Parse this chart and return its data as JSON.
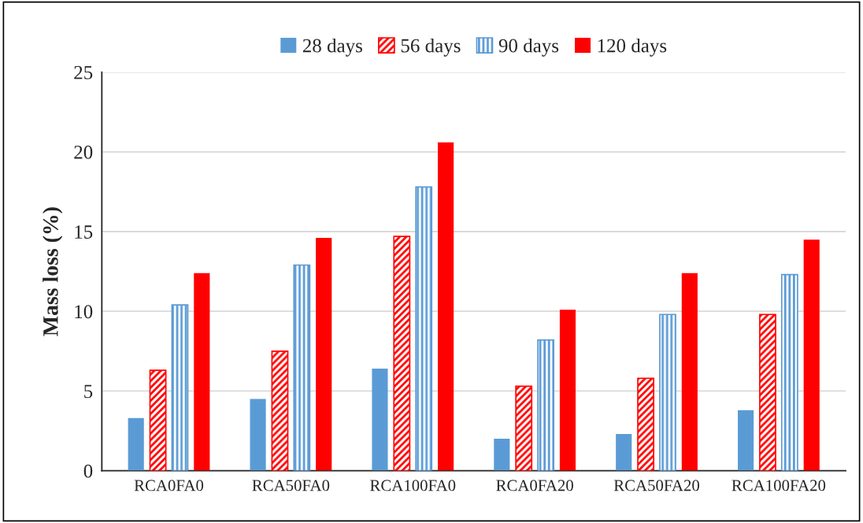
{
  "chart_data": {
    "type": "bar",
    "ylabel": "Mass loss (%)",
    "categories": [
      "RCA0FA0",
      "RCA50FA0",
      "RCA100FA0",
      "RCA0FA20",
      "RCA50FA20",
      "RCA100FA20"
    ],
    "series": [
      {
        "name": "28 days",
        "color": "#5b9bd5",
        "values": [
          3.3,
          4.5,
          6.4,
          2.0,
          2.3,
          3.8
        ]
      },
      {
        "name": "56 days",
        "color": "#ff0000",
        "values": [
          6.3,
          7.5,
          14.7,
          5.3,
          5.8,
          9.8
        ]
      },
      {
        "name": "90 days",
        "color": "#5b9bd5",
        "values": [
          10.4,
          12.9,
          17.8,
          8.2,
          9.8,
          12.3
        ]
      },
      {
        "name": "120 days",
        "color": "#ff0000",
        "values": [
          12.4,
          14.6,
          20.6,
          10.1,
          12.4,
          14.5
        ]
      }
    ],
    "ylim": [
      0,
      25
    ],
    "yticks": [
      0,
      5,
      10,
      15,
      20,
      25
    ],
    "grid": "y",
    "legend": "top"
  }
}
